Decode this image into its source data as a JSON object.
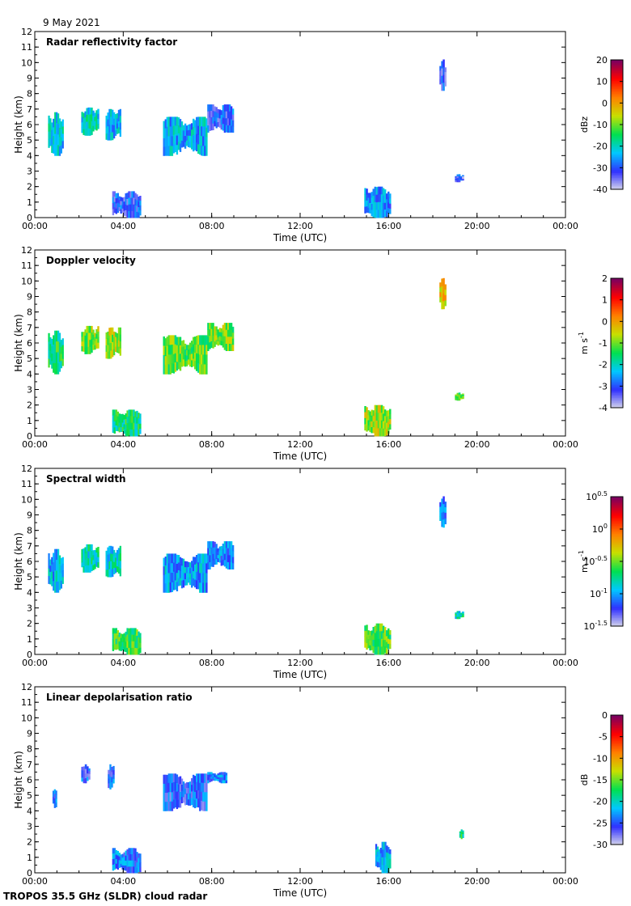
{
  "date_label": "9 May 2021",
  "footer_label": "TROPOS 35.5 GHz (SLDR) cloud radar",
  "chart_data": [
    {
      "type": "heatmap",
      "title": "Radar reflectivity factor",
      "xlabel": "Time (UTC)",
      "ylabel": "Height (km)",
      "xticks": [
        "00:00",
        "04:00",
        "08:00",
        "12:00",
        "16:00",
        "20:00",
        "00:00"
      ],
      "xlim": [
        0,
        24
      ],
      "ylim": [
        0,
        12
      ],
      "yticks": [
        "0",
        "1",
        "2",
        "3",
        "4",
        "5",
        "6",
        "7",
        "8",
        "9",
        "10",
        "11",
        "12"
      ],
      "colorbar": {
        "label": "dBz",
        "ticks": [
          "20",
          "10",
          "0",
          "-10",
          "-20",
          "-30",
          "-40"
        ],
        "range": [
          -40,
          20
        ],
        "palette": [
          "#d8d8ea",
          "#3030ff",
          "#00c8ff",
          "#00e050",
          "#c8e000",
          "#ff8000",
          "#ff0000",
          "#7a0060"
        ]
      },
      "cloud_regions": [
        {
          "t": [
            0.6,
            1.3
          ],
          "h": [
            4.0,
            6.8
          ],
          "value": -22
        },
        {
          "t": [
            2.1,
            2.9
          ],
          "h": [
            5.3,
            7.1
          ],
          "value": -20
        },
        {
          "t": [
            3.2,
            3.9
          ],
          "h": [
            5.0,
            7.0
          ],
          "value": -24
        },
        {
          "t": [
            5.8,
            7.8
          ],
          "h": [
            4.0,
            6.5
          ],
          "value": -24
        },
        {
          "t": [
            7.8,
            9.0
          ],
          "h": [
            5.5,
            7.3
          ],
          "value": -30
        },
        {
          "t": [
            3.5,
            4.8
          ],
          "h": [
            0.0,
            1.7
          ],
          "value": -30
        },
        {
          "t": [
            14.9,
            16.1
          ],
          "h": [
            0.0,
            2.0
          ],
          "value": -27
        },
        {
          "t": [
            18.3,
            18.6
          ],
          "h": [
            8.2,
            10.2
          ],
          "value": -32
        },
        {
          "t": [
            19.0,
            19.4
          ],
          "h": [
            2.3,
            2.8
          ],
          "value": -32
        }
      ]
    },
    {
      "type": "heatmap",
      "title": "Doppler velocity",
      "xlabel": "Time (UTC)",
      "ylabel": "Height (km)",
      "xticks": [
        "00:00",
        "04:00",
        "08:00",
        "12:00",
        "16:00",
        "20:00",
        "00:00"
      ],
      "xlim": [
        0,
        24
      ],
      "ylim": [
        0,
        12
      ],
      "yticks": [
        "0",
        "1",
        "2",
        "3",
        "4",
        "5",
        "6",
        "7",
        "8",
        "9",
        "10",
        "11",
        "12"
      ],
      "colorbar": {
        "label": "m s",
        "label_sup": "-1",
        "ticks": [
          "2",
          "1",
          "0",
          "-1",
          "-2",
          "-3",
          "-4"
        ],
        "range": [
          -4,
          2
        ],
        "palette": [
          "#d8d8ea",
          "#3030ff",
          "#00c8ff",
          "#00e050",
          "#c8e000",
          "#ff8000",
          "#ff0000",
          "#7a0060"
        ]
      },
      "cloud_regions": [
        {
          "t": [
            0.6,
            1.3
          ],
          "h": [
            4.0,
            6.8
          ],
          "value": -1.5
        },
        {
          "t": [
            2.1,
            2.9
          ],
          "h": [
            5.3,
            7.1
          ],
          "value": -0.9
        },
        {
          "t": [
            3.2,
            3.9
          ],
          "h": [
            5.0,
            7.0
          ],
          "value": -0.7
        },
        {
          "t": [
            5.8,
            7.8
          ],
          "h": [
            4.0,
            6.5
          ],
          "value": -1.1
        },
        {
          "t": [
            7.8,
            9.0
          ],
          "h": [
            5.5,
            7.3
          ],
          "value": -1.0
        },
        {
          "t": [
            3.5,
            4.8
          ],
          "h": [
            0.0,
            1.7
          ],
          "value": -1.6
        },
        {
          "t": [
            14.9,
            16.1
          ],
          "h": [
            0.0,
            2.0
          ],
          "value": -0.8
        },
        {
          "t": [
            18.3,
            18.6
          ],
          "h": [
            8.2,
            10.2
          ],
          "value": -0.2
        },
        {
          "t": [
            19.0,
            19.4
          ],
          "h": [
            2.3,
            2.8
          ],
          "value": -1.2
        }
      ]
    },
    {
      "type": "heatmap",
      "title": "Spectral width",
      "xlabel": "Time (UTC)",
      "ylabel": "Height (km)",
      "xticks": [
        "00:00",
        "04:00",
        "08:00",
        "12:00",
        "16:00",
        "20:00",
        "00:00"
      ],
      "xlim": [
        0,
        24
      ],
      "ylim": [
        0,
        12
      ],
      "yticks": [
        "0",
        "1",
        "2",
        "3",
        "4",
        "5",
        "6",
        "7",
        "8",
        "9",
        "10",
        "11",
        "12"
      ],
      "colorbar": {
        "label": "m s",
        "label_sup": "-1",
        "log_ticks": [
          {
            "base": "10",
            "exp": "0.5"
          },
          {
            "base": "10",
            "exp": "0"
          },
          {
            "base": "10",
            "exp": "-0.5"
          },
          {
            "base": "10",
            "exp": "-1"
          },
          {
            "base": "10",
            "exp": "-1.5"
          }
        ],
        "range": [
          -1.5,
          0.5
        ],
        "palette": [
          "#d8d8ea",
          "#3030ff",
          "#00c8ff",
          "#00e050",
          "#c8e000",
          "#ff8000",
          "#ff0000",
          "#7a0060"
        ]
      },
      "cloud_regions": [
        {
          "t": [
            0.6,
            1.3
          ],
          "h": [
            4.0,
            6.8
          ],
          "value": -0.95
        },
        {
          "t": [
            2.1,
            2.9
          ],
          "h": [
            5.3,
            7.1
          ],
          "value": -0.8
        },
        {
          "t": [
            3.2,
            3.9
          ],
          "h": [
            5.0,
            7.0
          ],
          "value": -0.85
        },
        {
          "t": [
            5.8,
            7.8
          ],
          "h": [
            4.0,
            6.5
          ],
          "value": -1.0
        },
        {
          "t": [
            7.8,
            9.0
          ],
          "h": [
            5.5,
            7.3
          ],
          "value": -1.05
        },
        {
          "t": [
            3.5,
            4.8
          ],
          "h": [
            0.0,
            1.7
          ],
          "value": -0.6
        },
        {
          "t": [
            14.9,
            16.1
          ],
          "h": [
            0.0,
            2.0
          ],
          "value": -0.55
        },
        {
          "t": [
            18.3,
            18.6
          ],
          "h": [
            8.2,
            10.2
          ],
          "value": -1.05
        },
        {
          "t": [
            19.0,
            19.4
          ],
          "h": [
            2.3,
            2.8
          ],
          "value": -0.8
        }
      ]
    },
    {
      "type": "heatmap",
      "title": "Linear depolarisation ratio",
      "xlabel": "Time (UTC)",
      "ylabel": "Height (km)",
      "xticks": [
        "00:00",
        "04:00",
        "08:00",
        "12:00",
        "16:00",
        "20:00",
        "00:00"
      ],
      "xlim": [
        0,
        24
      ],
      "ylim": [
        0,
        12
      ],
      "yticks": [
        "0",
        "1",
        "2",
        "3",
        "4",
        "5",
        "6",
        "7",
        "8",
        "9",
        "10",
        "11",
        "12"
      ],
      "colorbar": {
        "label": "dB",
        "ticks": [
          "0",
          "-5",
          "-10",
          "-15",
          "-20",
          "-25",
          "-30"
        ],
        "range": [
          -30,
          0
        ],
        "palette": [
          "#d8d8ea",
          "#3030ff",
          "#00c8ff",
          "#00e050",
          "#c8e000",
          "#ff8000",
          "#ff0000",
          "#7a0060"
        ]
      },
      "cloud_regions": [
        {
          "t": [
            0.8,
            1.0
          ],
          "h": [
            4.2,
            5.4
          ],
          "value": -25
        },
        {
          "t": [
            2.1,
            2.5
          ],
          "h": [
            5.8,
            7.0
          ],
          "value": -25
        },
        {
          "t": [
            3.3,
            3.6
          ],
          "h": [
            5.4,
            7.0
          ],
          "value": -25
        },
        {
          "t": [
            5.8,
            7.8
          ],
          "h": [
            4.0,
            6.4
          ],
          "value": -25
        },
        {
          "t": [
            7.8,
            8.7
          ],
          "h": [
            5.8,
            6.5
          ],
          "value": -24
        },
        {
          "t": [
            3.5,
            4.8
          ],
          "h": [
            0.0,
            1.6
          ],
          "value": -24
        },
        {
          "t": [
            15.4,
            16.1
          ],
          "h": [
            0.0,
            2.0
          ],
          "value": -22
        },
        {
          "t": [
            19.2,
            19.4
          ],
          "h": [
            2.2,
            2.8
          ],
          "value": -18
        }
      ]
    }
  ]
}
